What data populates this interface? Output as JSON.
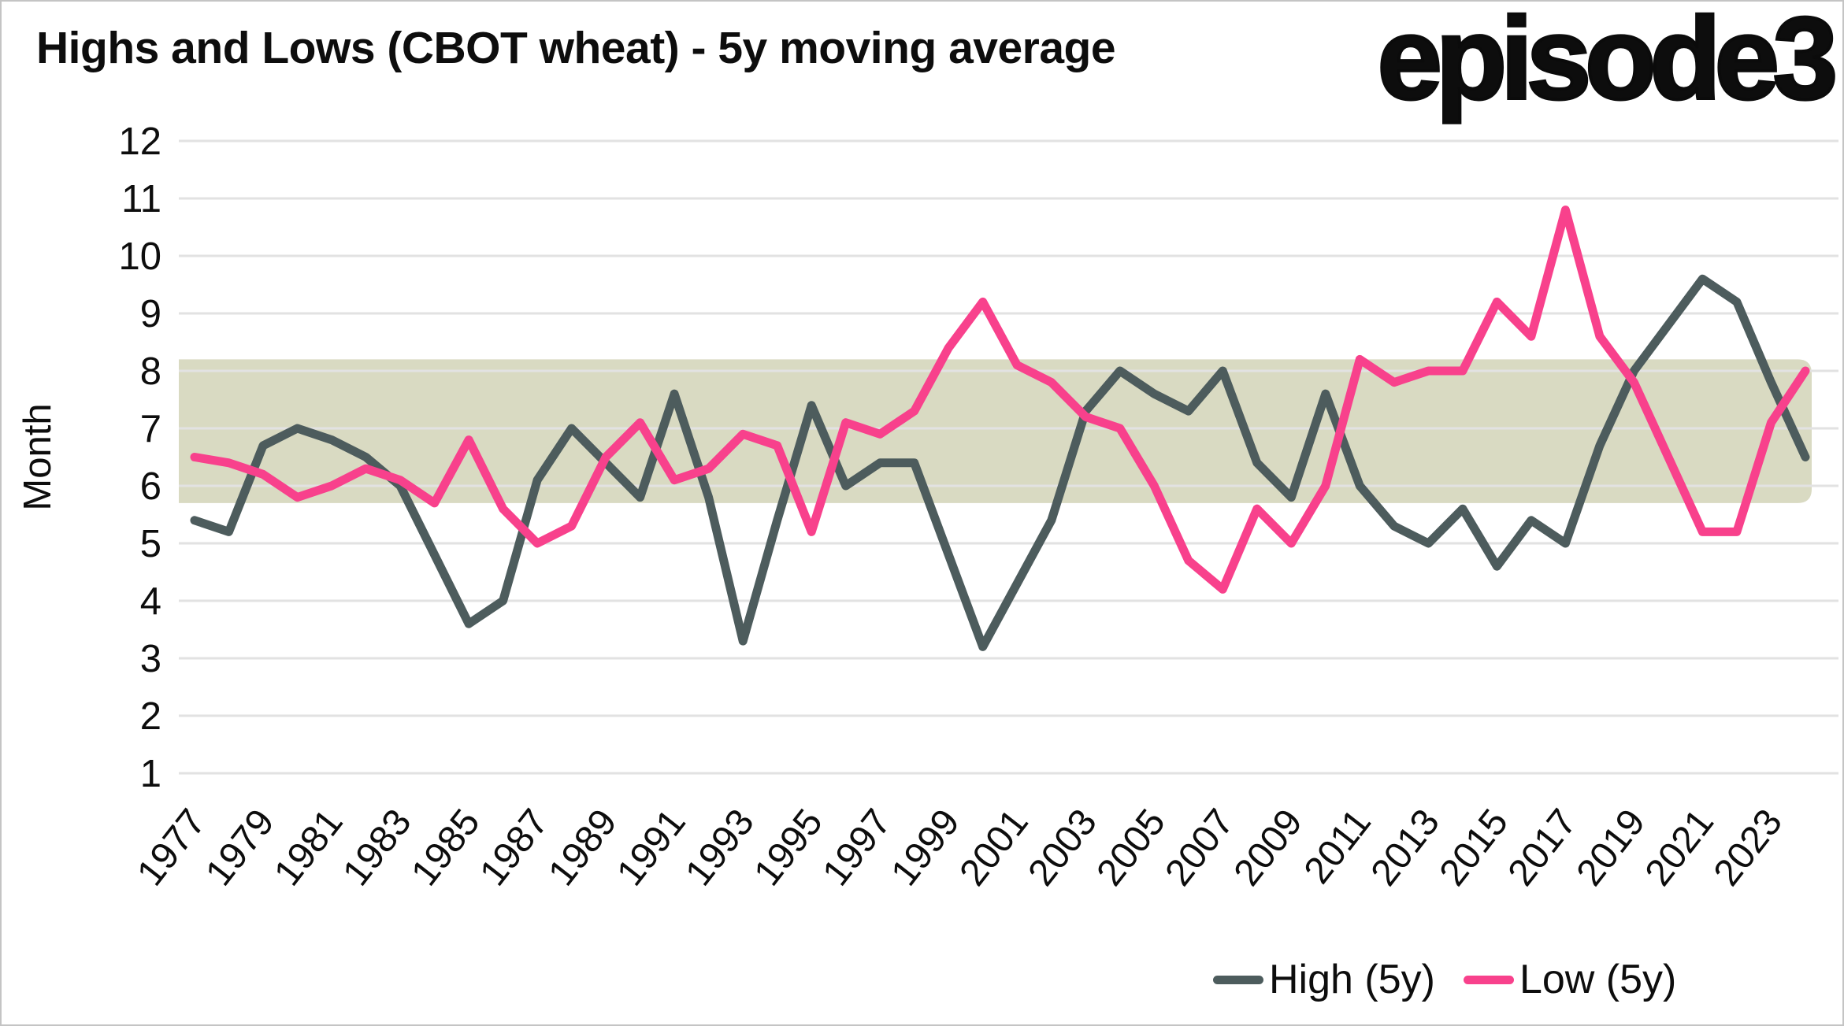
{
  "header": {
    "title": "Highs and Lows (CBOT wheat) - 5y moving average",
    "logo": "episode3"
  },
  "chart_data": {
    "type": "line",
    "title": "Highs and Lows (CBOT wheat) - 5y moving average",
    "xlabel": "",
    "ylabel": "Month",
    "ylim": [
      1,
      12
    ],
    "yticks": [
      1,
      2,
      3,
      4,
      5,
      6,
      7,
      8,
      9,
      10,
      11,
      12
    ],
    "grid": "horizontal",
    "legend_position": "bottom-right",
    "x": [
      1977,
      1978,
      1979,
      1980,
      1981,
      1982,
      1983,
      1984,
      1985,
      1986,
      1987,
      1988,
      1989,
      1990,
      1991,
      1992,
      1993,
      1994,
      1995,
      1996,
      1997,
      1998,
      1999,
      2000,
      2001,
      2002,
      2003,
      2004,
      2005,
      2006,
      2007,
      2008,
      2009,
      2010,
      2011,
      2012,
      2013,
      2014,
      2015,
      2016,
      2017,
      2018,
      2019,
      2020,
      2021,
      2022,
      2023,
      2024
    ],
    "xtick_labels": [
      "1977",
      "1979",
      "1981",
      "1983",
      "1985",
      "1987",
      "1989",
      "1991",
      "1993",
      "1995",
      "1997",
      "1999",
      "2001",
      "2003",
      "2005",
      "2007",
      "2009",
      "2011",
      "2013",
      "2015",
      "2017",
      "2019",
      "2021",
      "2023"
    ],
    "series": [
      {
        "name": "High (5y)",
        "color": "#4d5c5d",
        "values": [
          5.4,
          5.2,
          6.7,
          7.0,
          6.8,
          6.5,
          6.0,
          4.8,
          3.6,
          4.0,
          6.1,
          7.0,
          6.4,
          5.8,
          7.6,
          5.8,
          3.3,
          5.4,
          7.4,
          6.0,
          6.4,
          6.4,
          4.8,
          3.2,
          4.3,
          5.4,
          7.3,
          8.0,
          7.6,
          7.3,
          8.0,
          6.4,
          5.8,
          7.6,
          6.0,
          5.3,
          5.0,
          5.6,
          4.6,
          5.4,
          5.0,
          6.7,
          8.0,
          8.8,
          9.6,
          9.2,
          7.8,
          6.5
        ]
      },
      {
        "name": "Low (5y)",
        "color": "#f8418c",
        "values": [
          6.5,
          6.4,
          6.2,
          5.8,
          6.0,
          6.3,
          6.1,
          5.7,
          6.8,
          5.6,
          5.0,
          5.3,
          6.5,
          7.1,
          6.1,
          6.3,
          6.9,
          6.7,
          5.2,
          7.1,
          6.9,
          7.3,
          8.4,
          9.2,
          8.1,
          7.8,
          7.2,
          7.0,
          6.0,
          4.7,
          4.2,
          5.6,
          5.0,
          6.0,
          8.2,
          7.8,
          8.0,
          8.0,
          9.2,
          8.6,
          10.8,
          8.6,
          7.8,
          6.5,
          5.2,
          5.2,
          7.1,
          8.0
        ]
      }
    ],
    "band": {
      "from": 5.7,
      "to": 8.2,
      "color": "#d9dac2"
    },
    "gridline_color": "#e2e2e2"
  }
}
